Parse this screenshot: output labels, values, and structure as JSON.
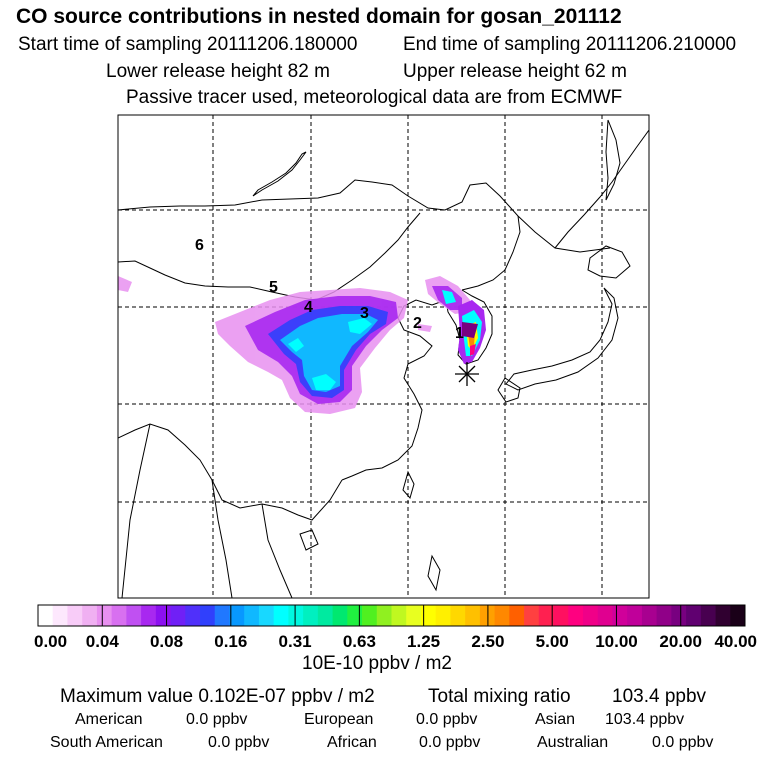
{
  "header": {
    "title": "CO  source contributions in nested domain for gosan_201112",
    "start_time": "Start time of sampling 20111206.180000",
    "end_time": "End time of sampling 20111206.210000",
    "lower_height": "Lower release height   82 m",
    "upper_height": "Upper release height   62 m",
    "tracer_note": "Passive tracer used, meteorological data are from ECMWF"
  },
  "chart_data": {
    "type": "heatmap",
    "title": "CO  source contributions in nested domain for gosan_201112",
    "trajectory_labels": [
      "1",
      "2",
      "3",
      "4",
      "5",
      "6"
    ],
    "receptor_marker": "asterisk",
    "colorbar": {
      "ticks": [
        "0.00",
        "0.04",
        "0.08",
        "0.16",
        "0.31",
        "0.63",
        "1.25",
        "2.50",
        "5.00",
        "10.00",
        "20.00",
        "40.00"
      ],
      "unit": "10E-10 ppbv / m2",
      "colors": [
        "#ffffff",
        "#fde8fd",
        "#f8ccf8",
        "#f0b0f2",
        "#e890f0",
        "#d870f0",
        "#c050f2",
        "#a828f0",
        "#8c10f0",
        "#7020f6",
        "#5030fa",
        "#3040fc",
        "#2078ff",
        "#0898ff",
        "#10b8ff",
        "#18d8ff",
        "#00ffff",
        "#00f8e0",
        "#00f0c0",
        "#00eaa0",
        "#00e870",
        "#20f040",
        "#50f020",
        "#90f020",
        "#c0f820",
        "#e8ff20",
        "#ffff00",
        "#fff000",
        "#ffd800",
        "#ffc000",
        "#ffa000",
        "#ff8800",
        "#ff6000",
        "#ff4040",
        "#ff2050",
        "#ff1060",
        "#ff0080",
        "#f00088",
        "#e00090",
        "#d0009a",
        "#c0009a",
        "#a80090",
        "#900088",
        "#780080",
        "#600070",
        "#480050",
        "#300030",
        "#1a0018"
      ]
    }
  },
  "stats": {
    "max_label": "Maximum value  0.102E-07 ppbv / m2",
    "total_label": "Total mixing ratio",
    "total_value": "103.4 ppbv",
    "american_label": "American",
    "american_value": "0.0 ppbv",
    "european_label": "European",
    "european_value": "0.0 ppbv",
    "asian_label": "Asian",
    "asian_value": "103.4 ppbv",
    "south_american_label": "South American",
    "south_american_value": "0.0 ppbv",
    "african_label": "African",
    "african_value": "0.0 ppbv",
    "australian_label": "Australian",
    "australian_value": "0.0 ppbv"
  }
}
